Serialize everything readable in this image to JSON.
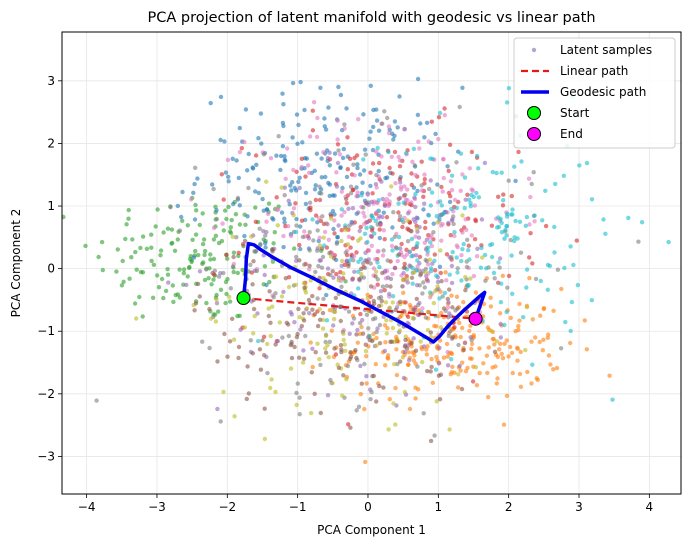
{
  "chart_data": {
    "type": "scatter",
    "title": "PCA projection of latent manifold with geodesic vs linear path",
    "xlabel": "PCA Component 1",
    "ylabel": "PCA Component 2",
    "xlim": [
      -4.35,
      4.45
    ],
    "ylim": [
      -3.6,
      3.78
    ],
    "grid": true,
    "legend_position": "top-right",
    "x_ticks": [
      -4,
      -3,
      -2,
      -1,
      0,
      1,
      2,
      3,
      4
    ],
    "y_ticks": [
      -3,
      -2,
      -1,
      0,
      1,
      2,
      3
    ],
    "x_tick_labels": [
      "−4",
      "−3",
      "−2",
      "−1",
      "0",
      "1",
      "2",
      "3",
      "4"
    ],
    "y_tick_labels": [
      "−3",
      "−2",
      "−1",
      "0",
      "1",
      "2",
      "3"
    ],
    "series": [
      {
        "name": "Latent samples",
        "kind": "scatter",
        "color": "#aaaacc",
        "clusters": [
          {
            "center": [
              -2.4,
              0.2
            ],
            "spread": [
              0.75,
              0.55
            ],
            "color": "#2ca02c",
            "count": 170
          },
          {
            "center": [
              1.2,
              -1.2
            ],
            "spread": [
              0.8,
              0.45
            ],
            "color": "#ff7f0e",
            "count": 240
          },
          {
            "center": [
              -0.6,
              1.5
            ],
            "spread": [
              0.9,
              0.7
            ],
            "color": "#1f77b4",
            "count": 210
          },
          {
            "center": [
              0.2,
              0.6
            ],
            "spread": [
              0.95,
              0.8
            ],
            "color": "#d62728",
            "count": 200
          },
          {
            "center": [
              0.3,
              0.9
            ],
            "spread": [
              0.9,
              0.85
            ],
            "color": "#e377c2",
            "count": 200
          },
          {
            "center": [
              0.1,
              -0.1
            ],
            "spread": [
              1.1,
              0.9
            ],
            "color": "#9467bd",
            "count": 180
          },
          {
            "center": [
              0.0,
              0.0
            ],
            "spread": [
              1.2,
              1.0
            ],
            "color": "#7f7f7f",
            "count": 200
          },
          {
            "center": [
              1.4,
              0.5
            ],
            "spread": [
              1.0,
              0.9
            ],
            "color": "#17becf",
            "count": 190
          },
          {
            "center": [
              -0.3,
              -0.6
            ],
            "spread": [
              1.0,
              0.8
            ],
            "color": "#bcbd22",
            "count": 150
          },
          {
            "center": [
              -0.4,
              -0.9
            ],
            "spread": [
              1.0,
              0.7
            ],
            "color": "#8c564b",
            "count": 150
          }
        ]
      },
      {
        "name": "Linear path",
        "kind": "line",
        "color": "#e31a1c",
        "dash": "dashed",
        "x": [
          -1.77,
          1.53
        ],
        "y": [
          -0.47,
          -0.8
        ]
      },
      {
        "name": "Geodesic path",
        "kind": "line",
        "color": "#0000ee",
        "x": [
          -1.77,
          -1.74,
          -1.73,
          -1.7,
          -1.62,
          -1.52,
          -1.35,
          -1.1,
          -0.8,
          -0.45,
          -0.1,
          0.2,
          0.5,
          0.8,
          0.93,
          1.02,
          1.12,
          1.22,
          1.35,
          1.48,
          1.58,
          1.66,
          1.53
        ],
        "y": [
          -0.47,
          -0.15,
          0.15,
          0.4,
          0.38,
          0.3,
          0.18,
          0.02,
          -0.14,
          -0.34,
          -0.52,
          -0.7,
          -0.88,
          -1.08,
          -1.17,
          -1.08,
          -0.94,
          -0.82,
          -0.68,
          -0.55,
          -0.45,
          -0.38,
          -0.8
        ]
      },
      {
        "name": "Start",
        "kind": "marker",
        "color": "#00ff00",
        "x": [
          -1.77
        ],
        "y": [
          -0.47
        ]
      },
      {
        "name": "End",
        "kind": "marker",
        "color": "#ff00ff",
        "x": [
          1.53
        ],
        "y": [
          -0.8
        ]
      }
    ]
  }
}
